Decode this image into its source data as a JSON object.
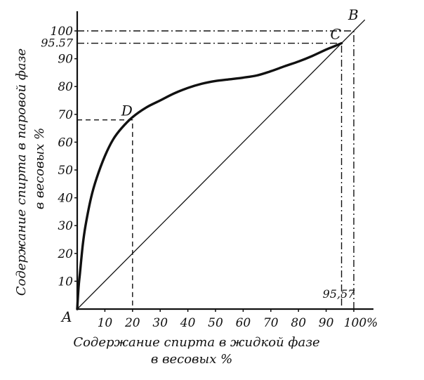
{
  "chart_data": {
    "type": "line",
    "xlabel": [
      "Содержание спирта в жидкой фазе",
      "в весовых %"
    ],
    "ylabel": [
      "Содержание спирта в паровой фазе",
      "в весовых %"
    ],
    "xlim": [
      0,
      100
    ],
    "ylim": [
      0,
      100
    ],
    "x_ticks": [
      "10",
      "20",
      "30",
      "40",
      "50",
      "60",
      "70",
      "80",
      "90",
      "100%"
    ],
    "y_ticks": [
      "10",
      "20",
      "30",
      "40",
      "50",
      "60",
      "70",
      "80",
      "90",
      "100"
    ],
    "y_extra_tick": "95.57",
    "x_annotation": "95,57",
    "origin_label": "A",
    "grid": false,
    "series": [
      {
        "kind": "equilibrium-curve",
        "x": [
          0,
          0.5,
          1,
          2,
          3,
          5,
          7,
          10,
          13,
          16,
          20,
          25,
          30,
          35,
          40,
          45,
          50,
          55,
          60,
          65,
          70,
          75,
          80,
          85,
          90,
          93,
          95.57
        ],
        "y": [
          0,
          8,
          13,
          23,
          30,
          40,
          47,
          55,
          61,
          65,
          69,
          72.5,
          75,
          77.5,
          79.5,
          81,
          82,
          82.6,
          83.2,
          84,
          85.5,
          87.3,
          89,
          91,
          93.3,
          94.5,
          95.57
        ]
      },
      {
        "kind": "diagonal",
        "x": [
          0,
          104
        ],
        "y": [
          0,
          104
        ]
      }
    ],
    "points": [
      {
        "label": "D",
        "x": 20,
        "y": 68
      },
      {
        "label": "C",
        "x": 95.57,
        "y": 95.57
      },
      {
        "label": "B",
        "x": 100,
        "y": 100
      }
    ]
  }
}
